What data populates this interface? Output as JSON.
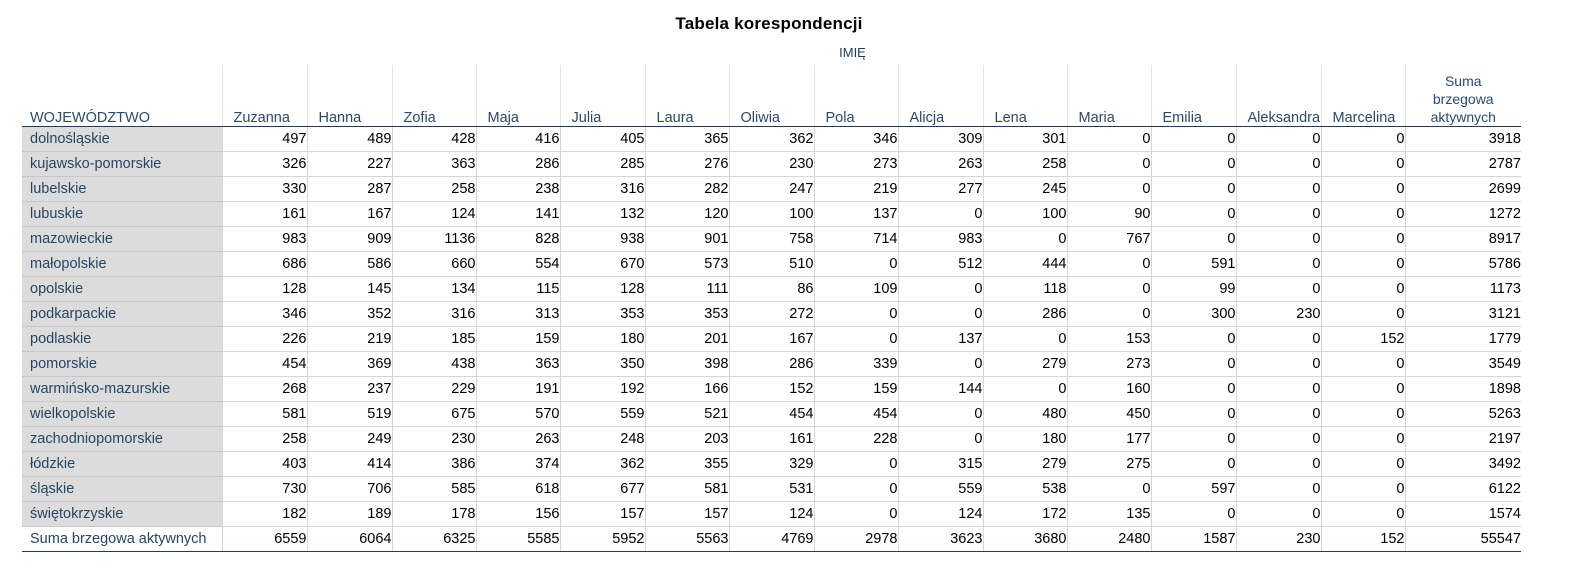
{
  "title": "Tabela korespondencji",
  "group_header": "IMIĘ",
  "corner_label": "WOJEWÓDZTWO",
  "columns": [
    "Zuzanna",
    "Hanna",
    "Zofia",
    "Maja",
    "Julia",
    "Laura",
    "Oliwia",
    "Pola",
    "Alicja",
    "Lena",
    "Maria",
    "Emilia",
    "Aleksandra",
    "Marcelina"
  ],
  "total_header": [
    "Suma",
    "brzegowa",
    "aktywnych"
  ],
  "rows": [
    {
      "label": "dolnośląskie",
      "values": [
        "497",
        "489",
        "428",
        "416",
        "405",
        "365",
        "362",
        "346",
        "309",
        "301",
        "0",
        "0",
        "0",
        "0",
        "3918"
      ]
    },
    {
      "label": "kujawsko-pomorskie",
      "values": [
        "326",
        "227",
        "363",
        "286",
        "285",
        "276",
        "230",
        "273",
        "263",
        "258",
        "0",
        "0",
        "0",
        "0",
        "2787"
      ]
    },
    {
      "label": "lubelskie",
      "values": [
        "330",
        "287",
        "258",
        "238",
        "316",
        "282",
        "247",
        "219",
        "277",
        "245",
        "0",
        "0",
        "0",
        "0",
        "2699"
      ]
    },
    {
      "label": "lubuskie",
      "values": [
        "161",
        "167",
        "124",
        "141",
        "132",
        "120",
        "100",
        "137",
        "0",
        "100",
        "90",
        "0",
        "0",
        "0",
        "1272"
      ]
    },
    {
      "label": "mazowieckie",
      "values": [
        "983",
        "909",
        "1136",
        "828",
        "938",
        "901",
        "758",
        "714",
        "983",
        "0",
        "767",
        "0",
        "0",
        "0",
        "8917"
      ]
    },
    {
      "label": "małopolskie",
      "values": [
        "686",
        "586",
        "660",
        "554",
        "670",
        "573",
        "510",
        "0",
        "512",
        "444",
        "0",
        "591",
        "0",
        "0",
        "5786"
      ]
    },
    {
      "label": "opolskie",
      "values": [
        "128",
        "145",
        "134",
        "115",
        "128",
        "111",
        "86",
        "109",
        "0",
        "118",
        "0",
        "99",
        "0",
        "0",
        "1173"
      ]
    },
    {
      "label": "podkarpackie",
      "values": [
        "346",
        "352",
        "316",
        "313",
        "353",
        "353",
        "272",
        "0",
        "0",
        "286",
        "0",
        "300",
        "230",
        "0",
        "3121"
      ]
    },
    {
      "label": "podlaskie",
      "values": [
        "226",
        "219",
        "185",
        "159",
        "180",
        "201",
        "167",
        "0",
        "137",
        "0",
        "153",
        "0",
        "0",
        "152",
        "1779"
      ]
    },
    {
      "label": "pomorskie",
      "values": [
        "454",
        "369",
        "438",
        "363",
        "350",
        "398",
        "286",
        "339",
        "0",
        "279",
        "273",
        "0",
        "0",
        "0",
        "3549"
      ]
    },
    {
      "label": "warmińsko-mazurskie",
      "values": [
        "268",
        "237",
        "229",
        "191",
        "192",
        "166",
        "152",
        "159",
        "144",
        "0",
        "160",
        "0",
        "0",
        "0",
        "1898"
      ]
    },
    {
      "label": "wielkopolskie",
      "values": [
        "581",
        "519",
        "675",
        "570",
        "559",
        "521",
        "454",
        "454",
        "0",
        "480",
        "450",
        "0",
        "0",
        "0",
        "5263"
      ]
    },
    {
      "label": "zachodniopomorskie",
      "values": [
        "258",
        "249",
        "230",
        "263",
        "248",
        "203",
        "161",
        "228",
        "0",
        "180",
        "177",
        "0",
        "0",
        "0",
        "2197"
      ]
    },
    {
      "label": "łódzkie",
      "values": [
        "403",
        "414",
        "386",
        "374",
        "362",
        "355",
        "329",
        "0",
        "315",
        "279",
        "275",
        "0",
        "0",
        "0",
        "3492"
      ]
    },
    {
      "label": "śląskie",
      "values": [
        "730",
        "706",
        "585",
        "618",
        "677",
        "581",
        "531",
        "0",
        "559",
        "538",
        "0",
        "597",
        "0",
        "0",
        "6122"
      ]
    },
    {
      "label": "świętokrzyskie",
      "values": [
        "182",
        "189",
        "178",
        "156",
        "157",
        "157",
        "124",
        "0",
        "124",
        "172",
        "135",
        "0",
        "0",
        "0",
        "1574"
      ]
    },
    {
      "label": "Suma brzegowa aktywnych",
      "values": [
        "6559",
        "6064",
        "6325",
        "5585",
        "5952",
        "5563",
        "4769",
        "2978",
        "3623",
        "3680",
        "2480",
        "1587",
        "230",
        "152",
        "55547"
      ]
    }
  ]
}
